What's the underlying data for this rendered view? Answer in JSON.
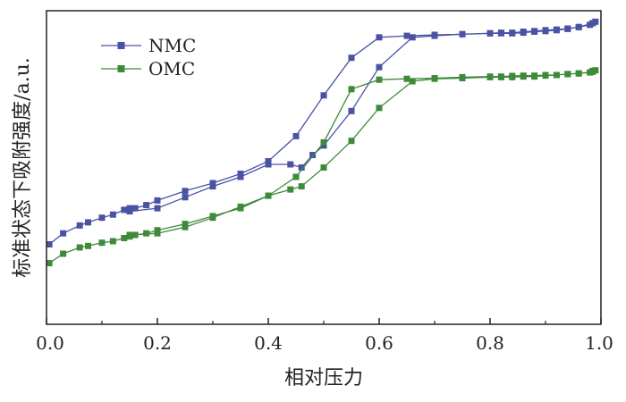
{
  "chart_data": {
    "type": "line",
    "title": "",
    "xlabel": "相对压力",
    "ylabel": "标准状态下吸附强度/a.u.",
    "xlim": [
      0.0,
      1.0
    ],
    "ylim": [
      0,
      100
    ],
    "x_ticks": [
      "0.0",
      "0.2",
      "0.4",
      "0.6",
      "0.8",
      "1.0"
    ],
    "x_tick_values": [
      0.0,
      0.2,
      0.4,
      0.6,
      0.8,
      1.0
    ],
    "y_tick_labels_shown": false,
    "legend": {
      "placement": "top-left",
      "entries": [
        "NMC",
        "OMC"
      ]
    },
    "grid": false,
    "colors": {
      "NMC": "#4a52a3",
      "OMC": "#3f8a3a"
    },
    "series": [
      {
        "name": "NMC",
        "color": "#4a52a3",
        "marker": "square",
        "x": [
          0.005,
          0.03,
          0.06,
          0.075,
          0.1,
          0.12,
          0.14,
          0.15,
          0.16,
          0.18,
          0.2,
          0.25,
          0.3,
          0.35,
          0.4,
          0.45,
          0.5,
          0.55,
          0.6,
          0.65,
          0.7,
          0.75,
          0.8,
          0.82,
          0.84,
          0.86,
          0.88,
          0.9,
          0.92,
          0.94,
          0.96,
          0.98,
          0.985,
          0.99,
          0.985,
          0.96,
          0.94,
          0.92,
          0.9,
          0.88,
          0.86,
          0.84,
          0.82,
          0.8,
          0.75,
          0.7,
          0.66,
          0.6,
          0.55,
          0.5,
          0.48,
          0.46,
          0.44,
          0.4,
          0.35,
          0.3,
          0.25,
          0.2,
          0.15
        ],
        "y": [
          25.5,
          29.0,
          31.5,
          32.5,
          34.0,
          35.0,
          36.5,
          37.0,
          37.0,
          38.0,
          39.5,
          42.5,
          45.0,
          48.0,
          52.0,
          60.0,
          73.0,
          85.0,
          91.5,
          92.0,
          92.3,
          92.5,
          92.8,
          93.0,
          93.0,
          93.3,
          93.5,
          93.8,
          94.0,
          94.3,
          94.8,
          95.5,
          96.0,
          96.5,
          96.0,
          94.8,
          94.2,
          93.8,
          93.5,
          93.3,
          93.0,
          92.8,
          92.8,
          92.8,
          92.5,
          92.0,
          91.5,
          82.0,
          68.0,
          57.0,
          54.0,
          50.0,
          51.0,
          51.0,
          47.0,
          44.0,
          40.5,
          37.0,
          36.0
        ]
      },
      {
        "name": "OMC",
        "color": "#3f8a3a",
        "marker": "square",
        "x": [
          0.005,
          0.03,
          0.06,
          0.075,
          0.1,
          0.12,
          0.14,
          0.15,
          0.16,
          0.18,
          0.2,
          0.25,
          0.3,
          0.35,
          0.4,
          0.45,
          0.5,
          0.55,
          0.6,
          0.65,
          0.7,
          0.75,
          0.8,
          0.82,
          0.84,
          0.86,
          0.88,
          0.9,
          0.92,
          0.94,
          0.96,
          0.98,
          0.985,
          0.99,
          0.985,
          0.96,
          0.94,
          0.92,
          0.9,
          0.88,
          0.86,
          0.84,
          0.82,
          0.8,
          0.75,
          0.7,
          0.66,
          0.6,
          0.55,
          0.5,
          0.46,
          0.44,
          0.4,
          0.35,
          0.3,
          0.25,
          0.2,
          0.15
        ],
        "y": [
          19.5,
          22.5,
          24.5,
          25.0,
          26.0,
          26.5,
          27.5,
          28.0,
          28.5,
          29.0,
          30.0,
          32.0,
          34.5,
          37.0,
          41.0,
          47.0,
          58.0,
          75.0,
          78.0,
          78.3,
          78.5,
          78.8,
          79.0,
          79.0,
          79.2,
          79.3,
          79.3,
          79.5,
          79.5,
          79.8,
          80.0,
          80.3,
          80.8,
          81.0,
          80.5,
          80.0,
          79.8,
          79.5,
          79.3,
          79.0,
          79.0,
          78.8,
          78.8,
          78.8,
          78.5,
          78.3,
          77.5,
          69.0,
          58.5,
          50.0,
          44.0,
          43.0,
          41.0,
          37.5,
          34.0,
          31.0,
          29.0,
          28.5
        ]
      }
    ]
  }
}
